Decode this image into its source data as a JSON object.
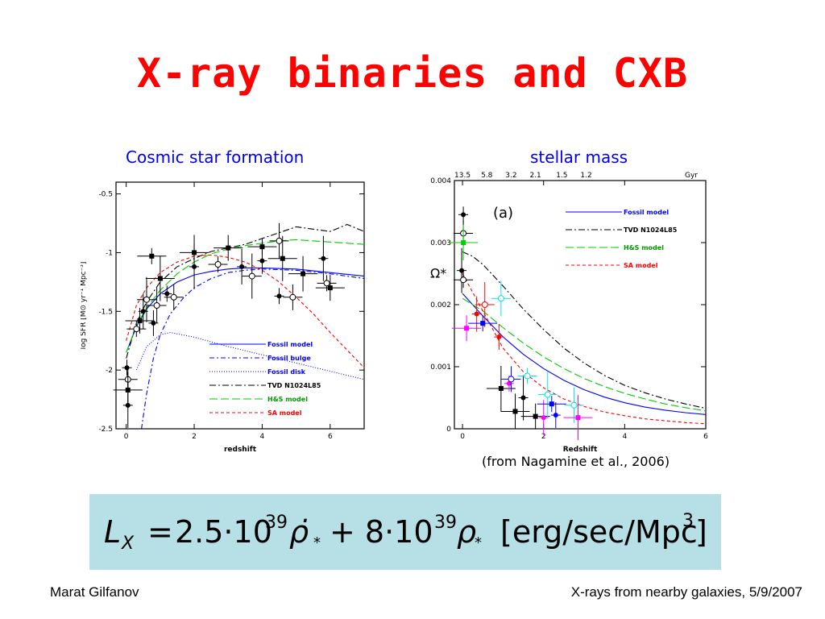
{
  "slide": {
    "title": "X-ray binaries and CXB",
    "left_caption": "Cosmic star formation",
    "right_caption": "stellar mass",
    "citation": "(from Nagamine et al., 2006)",
    "formula": {
      "lhs": "L",
      "lhs_sub": "X",
      "coef1": "2.5·10",
      "exp1": "39",
      "rho_dot": "ρ̇",
      "star": "*",
      "plus": "+ 8·10",
      "exp2": "39",
      "rho": "ρ",
      "units": "[erg/sec/Mpc",
      "units_exp": "3",
      "units_close": "]"
    },
    "footer_left": "Marat Gilfanov",
    "footer_right": "X-rays from nearby galaxies, 5/9/2007"
  },
  "chart_data": [
    {
      "type": "line",
      "xlabel": "redshift",
      "ylabel": "log SFR [M⊙ yr⁻¹ Mpc⁻³]",
      "xlim": [
        -0.3,
        7
      ],
      "ylim": [
        -2.5,
        -0.4
      ],
      "xticks": [
        "0",
        "2",
        "4",
        "6"
      ],
      "yticks": [
        "-0.5",
        "-1",
        "-1.5",
        "-2",
        "-2.5"
      ],
      "legend_position": "bottom-right",
      "series": [
        {
          "name": "Fossil model",
          "color": "#0000ff",
          "dash": "",
          "x": [
            0,
            0.3,
            0.6,
            1,
            1.5,
            2,
            2.5,
            3,
            3.5,
            4,
            5,
            6,
            7
          ],
          "y": [
            -1.85,
            -1.63,
            -1.48,
            -1.35,
            -1.25,
            -1.19,
            -1.16,
            -1.14,
            -1.13,
            -1.13,
            -1.14,
            -1.17,
            -1.2
          ]
        },
        {
          "name": "Fossil bulge",
          "color": "#0000ff",
          "dash": "6,3,2,3",
          "x": [
            0.45,
            0.6,
            0.8,
            1,
            1.3,
            1.7,
            2,
            2.5,
            3,
            3.5,
            4,
            5,
            6,
            7
          ],
          "y": [
            -2.5,
            -2.2,
            -1.9,
            -1.7,
            -1.52,
            -1.38,
            -1.3,
            -1.22,
            -1.17,
            -1.15,
            -1.14,
            -1.15,
            -1.18,
            -1.22
          ]
        },
        {
          "name": "Fossil disk",
          "color": "#0000ff",
          "dash": "1,2",
          "x": [
            0.3,
            0.6,
            1,
            1.3,
            2,
            3,
            4,
            5,
            6,
            7
          ],
          "y": [
            -2.0,
            -1.8,
            -1.7,
            -1.68,
            -1.72,
            -1.8,
            -1.87,
            -1.94,
            -2.01,
            -2.08
          ]
        },
        {
          "name": "TVD N1024L85",
          "color": "#000000",
          "dash": "8,3,2,3",
          "x": [
            0,
            0.3,
            0.6,
            1,
            1.5,
            2,
            2.5,
            3,
            3.5,
            4,
            4.5,
            5,
            5.5,
            6,
            6.5,
            7
          ],
          "y": [
            -1.9,
            -1.6,
            -1.42,
            -1.25,
            -1.12,
            -1.05,
            -0.99,
            -0.96,
            -0.93,
            -0.88,
            -0.83,
            -0.78,
            -0.8,
            -0.82,
            -0.76,
            -0.82
          ]
        },
        {
          "name": "H&S model",
          "color": "#00cc00",
          "dash": "10,4",
          "x": [
            0,
            0.3,
            0.6,
            1,
            1.5,
            2,
            2.5,
            3,
            3.5,
            4,
            4.5,
            5,
            5.5,
            6,
            7
          ],
          "y": [
            -1.85,
            -1.62,
            -1.47,
            -1.32,
            -1.18,
            -1.08,
            -1.01,
            -0.97,
            -0.94,
            -0.92,
            -0.9,
            -0.89,
            -0.9,
            -0.91,
            -0.93
          ]
        },
        {
          "name": "SA model",
          "color": "#ff0000",
          "dash": "4,3",
          "x": [
            0,
            0.3,
            0.6,
            1,
            1.5,
            2,
            2.5,
            3,
            3.5,
            4,
            4.5,
            5,
            5.5,
            6,
            6.5,
            7
          ],
          "y": [
            -1.75,
            -1.45,
            -1.3,
            -1.17,
            -1.08,
            -1.03,
            -1.02,
            -1.04,
            -1.08,
            -1.15,
            -1.25,
            -1.38,
            -1.52,
            -1.68,
            -1.83,
            -1.98
          ]
        }
      ],
      "points": [
        {
          "x": 0.02,
          "y": -1.98
        },
        {
          "x": 0.05,
          "y": -2.08
        },
        {
          "x": 0.05,
          "y": -2.17
        },
        {
          "x": 0.05,
          "y": -2.3
        },
        {
          "x": 0.3,
          "y": -1.65
        },
        {
          "x": 0.4,
          "y": -1.58
        },
        {
          "x": 0.5,
          "y": -1.5
        },
        {
          "x": 0.6,
          "y": -1.4
        },
        {
          "x": 0.75,
          "y": -1.03
        },
        {
          "x": 0.8,
          "y": -1.6
        },
        {
          "x": 0.9,
          "y": -1.45
        },
        {
          "x": 1.0,
          "y": -1.22
        },
        {
          "x": 1.2,
          "y": -1.35
        },
        {
          "x": 1.4,
          "y": -1.38
        },
        {
          "x": 2.0,
          "y": -1.0
        },
        {
          "x": 2.0,
          "y": -1.12
        },
        {
          "x": 2.7,
          "y": -1.1
        },
        {
          "x": 3.0,
          "y": -0.96
        },
        {
          "x": 3.4,
          "y": -1.12
        },
        {
          "x": 3.7,
          "y": -1.2
        },
        {
          "x": 4.0,
          "y": -0.95
        },
        {
          "x": 4.0,
          "y": -1.07
        },
        {
          "x": 4.5,
          "y": -0.9
        },
        {
          "x": 4.6,
          "y": -1.05
        },
        {
          "x": 4.5,
          "y": -1.37
        },
        {
          "x": 4.9,
          "y": -1.38
        },
        {
          "x": 5.2,
          "y": -1.18
        },
        {
          "x": 5.8,
          "y": -1.05
        },
        {
          "x": 5.9,
          "y": -1.26
        },
        {
          "x": 6.0,
          "y": -1.3
        }
      ]
    },
    {
      "type": "line",
      "xlabel": "Redshift",
      "ylabel": "Ω*",
      "panel_label": "(a)",
      "xlim": [
        -0.2,
        6
      ],
      "ylim": [
        0,
        0.004
      ],
      "xticks": [
        "0",
        "2",
        "4",
        "6"
      ],
      "yticks": [
        "0",
        "0.001",
        "0.002",
        "0.003",
        "0.004"
      ],
      "top_axis_label": "Gyr",
      "top_ticks": [
        "13.5",
        "5.8",
        "3.2",
        "2.1",
        "1.5",
        "1.2"
      ],
      "legend_position": "top-right",
      "series": [
        {
          "name": "Fossil model",
          "color": "#0000ff",
          "dash": "",
          "x": [
            0,
            0.25,
            0.5,
            1,
            1.5,
            2,
            2.5,
            3,
            3.5,
            4,
            4.5,
            5,
            5.5,
            6
          ],
          "y": [
            0.00218,
            0.002,
            0.00182,
            0.00148,
            0.0012,
            0.00097,
            0.00078,
            0.00063,
            0.00051,
            0.00042,
            0.00035,
            0.0003,
            0.00026,
            0.00023
          ]
        },
        {
          "name": "TVD N1024L85",
          "color": "#000000",
          "dash": "8,3,2,3",
          "x": [
            0,
            0.25,
            0.5,
            1,
            1.5,
            2,
            2.5,
            3,
            3.5,
            4,
            4.5,
            5,
            5.5,
            6
          ],
          "y": [
            0.00285,
            0.00278,
            0.00265,
            0.0023,
            0.00193,
            0.0016,
            0.0013,
            0.00106,
            0.00086,
            0.0007,
            0.00058,
            0.00048,
            0.0004,
            0.00033
          ]
        },
        {
          "name": "H&S model",
          "color": "#00cc00",
          "dash": "10,4",
          "x": [
            0,
            0.5,
            1,
            1.5,
            2,
            2.5,
            3,
            3.5,
            4,
            4.5,
            5,
            5.5,
            6
          ],
          "y": [
            0.0021,
            0.0019,
            0.00163,
            0.00138,
            0.00116,
            0.00097,
            0.00081,
            0.00068,
            0.00057,
            0.00048,
            0.0004,
            0.00034,
            0.00029
          ]
        },
        {
          "name": "SA model",
          "color": "#ff0000",
          "dash": "4,3",
          "x": [
            0,
            0.5,
            1,
            1.5,
            2,
            2.5,
            3,
            3.5,
            4,
            4.5,
            5,
            5.5,
            6
          ],
          "y": [
            0.0025,
            0.0019,
            0.0013,
            0.00092,
            0.00066,
            0.00048,
            0.00036,
            0.00027,
            0.00021,
            0.00016,
            0.00013,
            0.0001,
            8e-05
          ]
        }
      ],
      "points": [
        {
          "x": 0.02,
          "y": 0.00345,
          "c": "#000000"
        },
        {
          "x": 0.02,
          "y": 0.00315,
          "c": "#000000"
        },
        {
          "x": 0.02,
          "y": 0.003,
          "c": "#00cc00"
        },
        {
          "x": -0.02,
          "y": 0.00255,
          "c": "#000000"
        },
        {
          "x": 0.02,
          "y": 0.0024,
          "c": "#000000"
        },
        {
          "x": 0.1,
          "y": 0.00162,
          "c": "#ff00ff"
        },
        {
          "x": 0.35,
          "y": 0.00185,
          "c": "#ff0000"
        },
        {
          "x": 0.55,
          "y": 0.002,
          "c": "#ff0000"
        },
        {
          "x": 0.5,
          "y": 0.0017,
          "c": "#0000ff"
        },
        {
          "x": 0.9,
          "y": 0.00148,
          "c": "#ff0000"
        },
        {
          "x": 0.95,
          "y": 0.0021,
          "c": "#00e5e5"
        },
        {
          "x": 0.95,
          "y": 0.00065,
          "c": "#000000"
        },
        {
          "x": 1.15,
          "y": 0.00073,
          "c": "#ff00ff"
        },
        {
          "x": 1.2,
          "y": 0.0008,
          "c": "#0000ff"
        },
        {
          "x": 1.3,
          "y": 0.00028,
          "c": "#000000"
        },
        {
          "x": 1.5,
          "y": 0.0005,
          "c": "#000000"
        },
        {
          "x": 1.6,
          "y": 0.00085,
          "c": "#00e5e5"
        },
        {
          "x": 1.8,
          "y": 0.0002,
          "c": "#000000"
        },
        {
          "x": 2.0,
          "y": 0.00018,
          "c": "#ff00ff"
        },
        {
          "x": 2.1,
          "y": 0.00055,
          "c": "#00e5e5"
        },
        {
          "x": 2.2,
          "y": 0.0004,
          "c": "#0000ff"
        },
        {
          "x": 2.3,
          "y": 0.00022,
          "c": "#0000ff"
        },
        {
          "x": 2.75,
          "y": 0.00038,
          "c": "#00e5e5"
        },
        {
          "x": 2.85,
          "y": 0.00018,
          "c": "#ff00ff"
        }
      ]
    }
  ]
}
